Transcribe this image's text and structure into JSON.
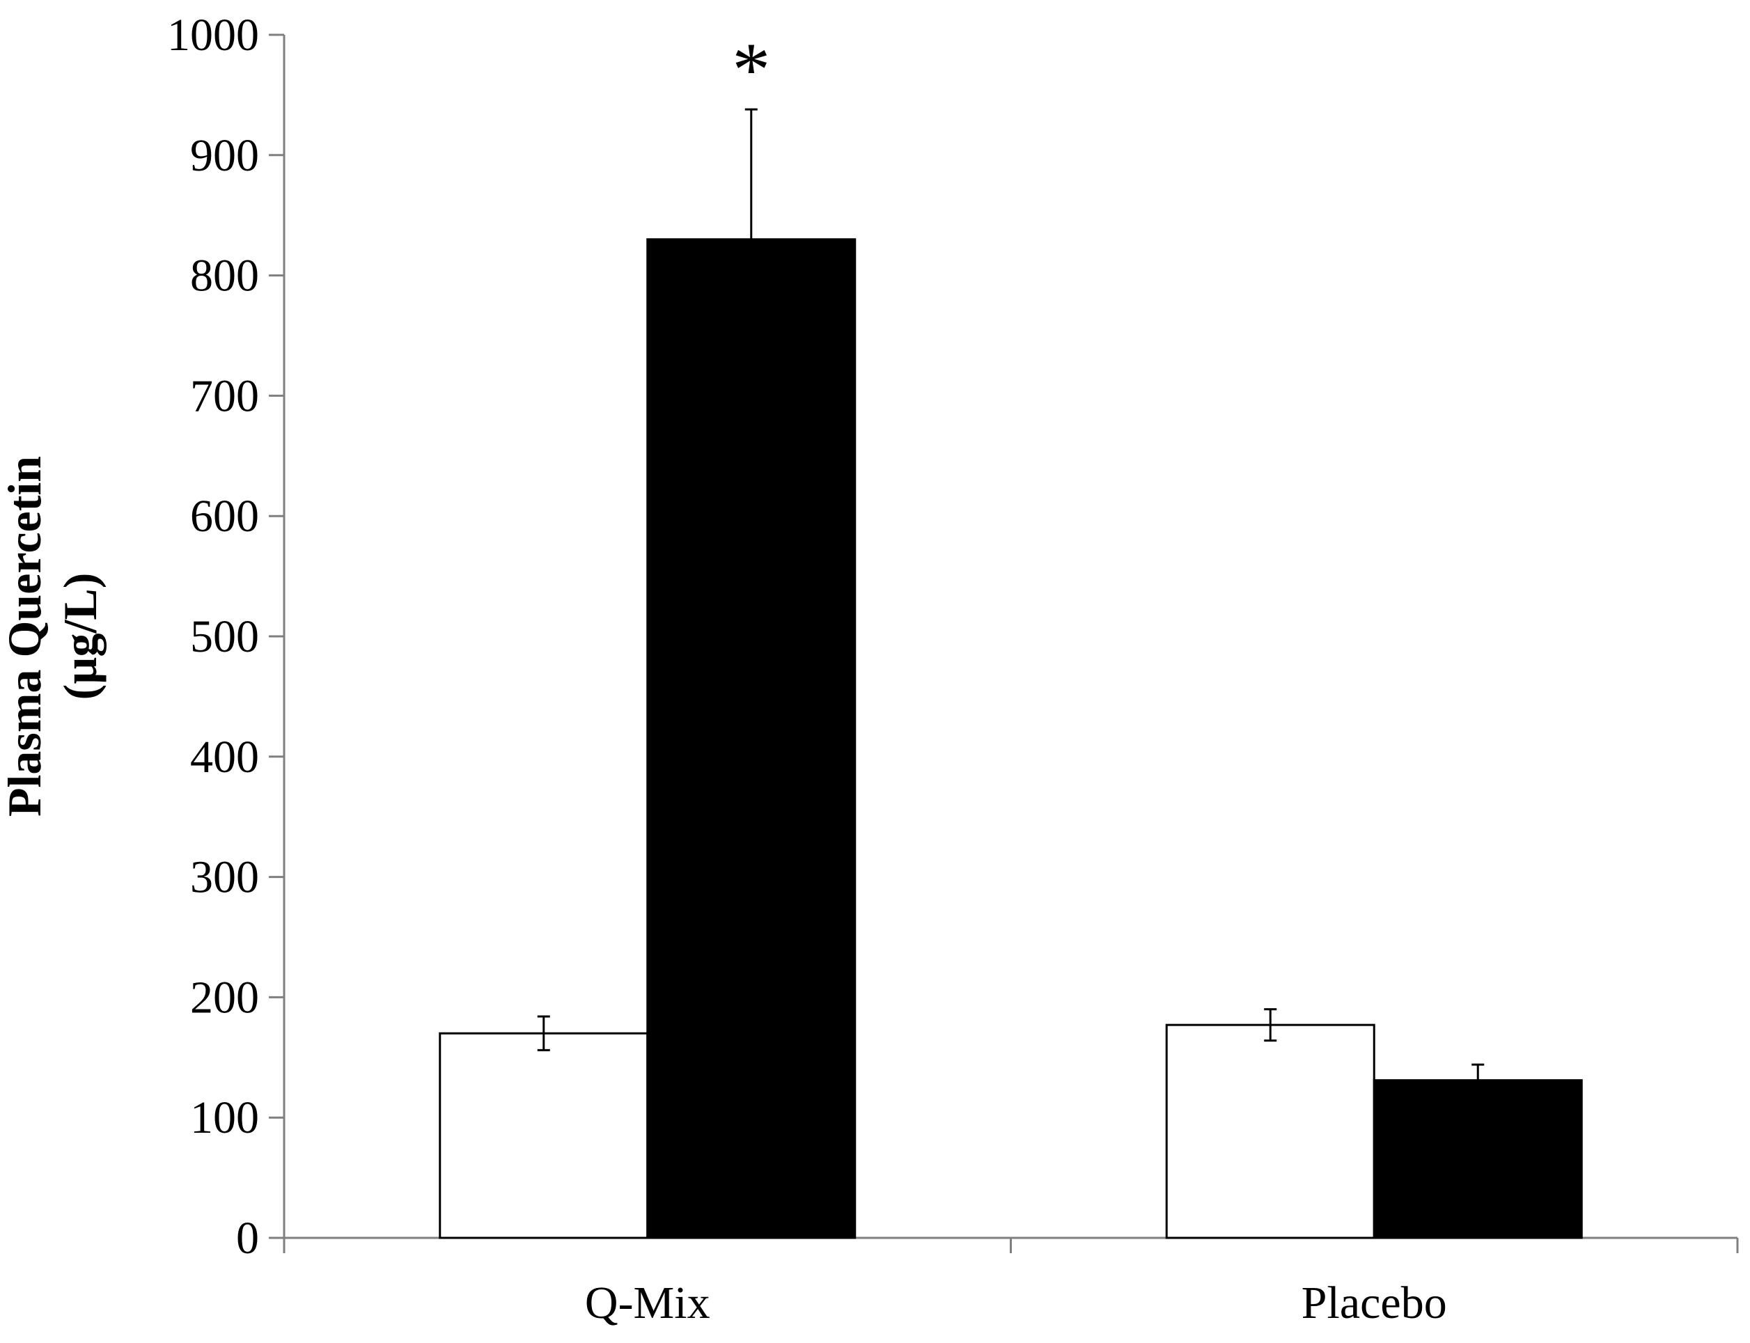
{
  "chart_data": {
    "type": "bar",
    "categories": [
      "Q-Mix",
      "Placebo"
    ],
    "series": [
      {
        "fill": "#ffffff",
        "values": [
          170,
          177
        ],
        "errors": [
          14,
          13
        ]
      },
      {
        "fill": "#000000",
        "values": [
          830,
          131
        ],
        "errors": [
          108,
          13
        ]
      }
    ],
    "ylabel_lines": [
      "Plasma Quercetin",
      "(µg/L)"
    ],
    "xlabel": "",
    "title": "",
    "ylim": [
      0,
      1000
    ],
    "yticks": [
      0,
      100,
      200,
      300,
      400,
      500,
      600,
      700,
      800,
      900,
      1000
    ],
    "grid": false,
    "legend": "none",
    "annotations": [
      {
        "text": "*",
        "category": "Q-Mix",
        "series_index": 1
      }
    ]
  }
}
